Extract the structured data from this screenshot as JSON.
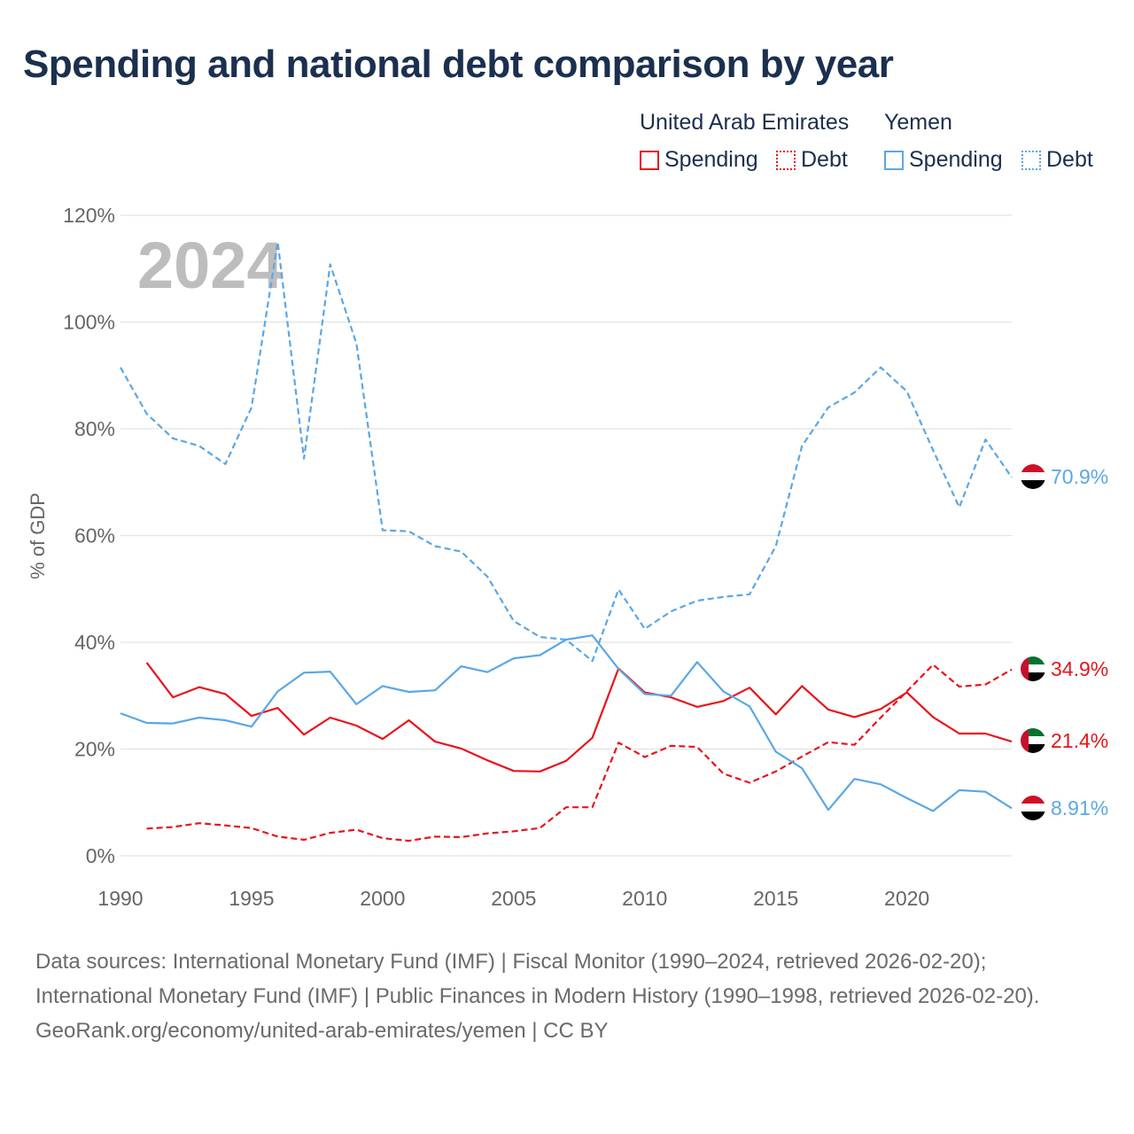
{
  "title": "Spending and national debt comparison by year",
  "year_watermark": "2024",
  "legend": {
    "groups": [
      {
        "country": "United Arab Emirates",
        "items": [
          {
            "label": "Spending",
            "style": "solid",
            "color": "#e8141b"
          },
          {
            "label": "Debt",
            "style": "dotted",
            "color": "#e8141b"
          }
        ]
      },
      {
        "country": "Yemen",
        "items": [
          {
            "label": "Spending",
            "style": "solid",
            "color": "#5aa7e6"
          },
          {
            "label": "Debt",
            "style": "dotted",
            "color": "#5aa7e6"
          }
        ]
      }
    ]
  },
  "colors": {
    "uae": "#e8141b",
    "yemen": "#5aa7e6",
    "grid": "#e3e3e3",
    "axis_text": "#666666",
    "watermark": "#bdbdbd"
  },
  "chart_data": {
    "type": "line",
    "title": "Spending and national debt comparison by year",
    "xlabel": "",
    "ylabel": "% of GDP",
    "xlim": [
      1990,
      2024
    ],
    "ylim": [
      0,
      120
    ],
    "x_ticks": [
      1990,
      1995,
      2000,
      2005,
      2010,
      2015,
      2020
    ],
    "y_ticks": [
      {
        "value": 0,
        "label": "0%"
      },
      {
        "value": 20,
        "label": "20%"
      },
      {
        "value": 40,
        "label": "40%"
      },
      {
        "value": 60,
        "label": "60%"
      },
      {
        "value": 80,
        "label": "80%"
      },
      {
        "value": 100,
        "label": "100%"
      },
      {
        "value": 120,
        "label": "120%"
      }
    ],
    "series": [
      {
        "name": "United Arab Emirates Spending",
        "key": "uae-spending",
        "country": "uae",
        "dash": "solid",
        "x": [
          1991,
          1992,
          1993,
          1994,
          1995,
          1996,
          1997,
          1998,
          1999,
          2000,
          2001,
          2002,
          2003,
          2004,
          2005,
          2006,
          2007,
          2008,
          2009,
          2010,
          2011,
          2012,
          2013,
          2014,
          2015,
          2016,
          2017,
          2018,
          2019,
          2020,
          2021,
          2022,
          2023,
          2024
        ],
        "values": [
          36.2,
          29.7,
          31.6,
          30.3,
          26.2,
          27.7,
          22.7,
          25.9,
          24.4,
          21.9,
          25.4,
          21.4,
          20.1,
          17.9,
          15.9,
          15.8,
          17.8,
          22.1,
          35.1,
          30.6,
          29.7,
          27.9,
          29.0,
          31.5,
          26.5,
          31.8,
          27.4,
          26.0,
          27.5,
          30.6,
          26.0,
          22.9,
          22.9,
          21.4
        ],
        "end_label": "21.4%"
      },
      {
        "name": "United Arab Emirates Debt",
        "key": "uae-debt",
        "country": "uae",
        "dash": "dashed",
        "x": [
          1991,
          1992,
          1993,
          1994,
          1995,
          1996,
          1997,
          1998,
          1999,
          2000,
          2001,
          2002,
          2003,
          2004,
          2005,
          2006,
          2007,
          2008,
          2009,
          2010,
          2011,
          2012,
          2013,
          2014,
          2015,
          2016,
          2017,
          2018,
          2019,
          2020,
          2021,
          2022,
          2023,
          2024
        ],
        "values": [
          5.1,
          5.4,
          6.1,
          5.7,
          5.2,
          3.6,
          3.0,
          4.3,
          4.9,
          3.3,
          2.8,
          3.6,
          3.5,
          4.2,
          4.6,
          5.2,
          9.1,
          9.1,
          21.2,
          18.5,
          20.6,
          20.4,
          15.4,
          13.7,
          15.8,
          18.6,
          21.3,
          20.8,
          25.9,
          30.8,
          35.8,
          31.7,
          32.1,
          34.9
        ],
        "end_label": "34.9%"
      },
      {
        "name": "Yemen Spending",
        "key": "yemen-spending",
        "country": "yemen",
        "dash": "solid",
        "x": [
          1990,
          1991,
          1992,
          1993,
          1994,
          1995,
          1996,
          1997,
          1998,
          1999,
          2000,
          2001,
          2002,
          2003,
          2004,
          2005,
          2006,
          2007,
          2008,
          2009,
          2010,
          2011,
          2012,
          2013,
          2014,
          2015,
          2016,
          2017,
          2018,
          2019,
          2020,
          2021,
          2022,
          2023,
          2024
        ],
        "values": [
          26.7,
          24.9,
          24.8,
          25.9,
          25.4,
          24.2,
          30.8,
          34.3,
          34.5,
          28.4,
          31.8,
          30.7,
          31.0,
          35.5,
          34.4,
          37.0,
          37.6,
          40.5,
          41.3,
          35.0,
          30.3,
          30.0,
          36.3,
          30.8,
          28.0,
          19.5,
          16.4,
          8.6,
          14.4,
          13.4,
          10.8,
          8.4,
          12.3,
          12.0,
          8.91
        ],
        "end_label": "8.91%"
      },
      {
        "name": "Yemen Debt",
        "key": "yemen-debt",
        "country": "yemen",
        "dash": "dashed",
        "x": [
          1990,
          1991,
          1992,
          1993,
          1994,
          1995,
          1996,
          1997,
          1998,
          1999,
          2000,
          2001,
          2002,
          2003,
          2004,
          2005,
          2006,
          2007,
          2008,
          2009,
          2010,
          2011,
          2012,
          2013,
          2014,
          2015,
          2016,
          2017,
          2018,
          2019,
          2020,
          2021,
          2022,
          2023,
          2024
        ],
        "values": [
          91.5,
          82.8,
          78.2,
          76.8,
          73.4,
          84.0,
          115.0,
          74.4,
          110.8,
          96.0,
          61.0,
          60.8,
          58.0,
          57.0,
          52.3,
          44.0,
          41.0,
          40.5,
          36.5,
          49.9,
          42.5,
          45.8,
          47.8,
          48.5,
          49.0,
          58.0,
          76.8,
          84.0,
          86.8,
          91.5,
          87.0,
          76.0,
          65.3,
          78.0,
          70.9
        ],
        "end_label": "70.9%"
      }
    ]
  },
  "sources": {
    "line1": "Data sources: International Monetary Fund (IMF) | Fiscal Monitor (1990–2024, retrieved 2026-02-20); International Monetary Fund (IMF) | Public Finances in Modern History (1990–1998, retrieved 2026-02-20).",
    "line2": "GeoRank.org/economy/united-arab-emirates/yemen | CC BY"
  }
}
